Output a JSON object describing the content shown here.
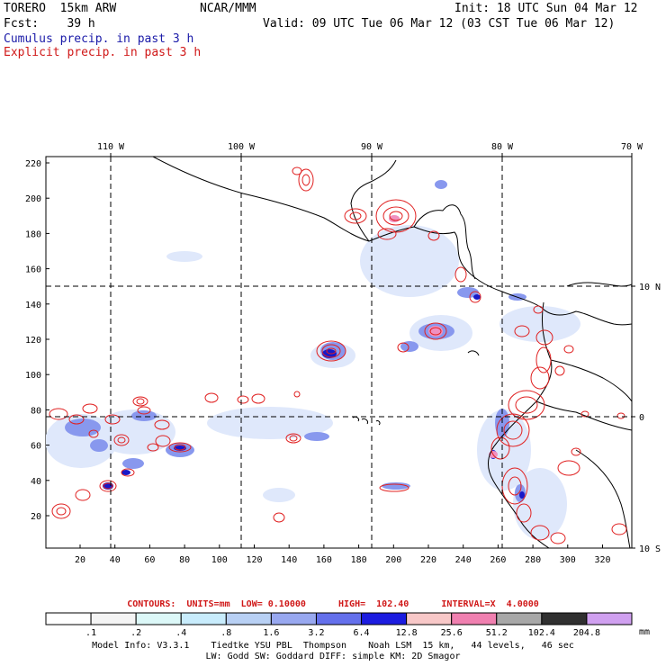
{
  "header": {
    "model": "TORERO  15km ARW",
    "org": "NCAR/MMM",
    "init": "Init: 18 UTC Sun 04 Mar 12",
    "fcst": "Fcst:    39 h",
    "valid": "Valid: 09 UTC Tue 06 Mar 12 (03 CST Tue 06 Mar 12)",
    "legend_cumulus": "Cumulus precip. in past 3 h",
    "legend_explicit": "Explicit precip. in past 3 h"
  },
  "map": {
    "lon_labels": [
      "110 W",
      "100 W",
      "90 W",
      "80 W",
      "70 W"
    ],
    "lat_labels": [
      "10 N",
      "0",
      "10 S"
    ],
    "y_ticks": [
      "220",
      "200",
      "180",
      "160",
      "140",
      "120",
      "100",
      "80",
      "60",
      "40",
      "20"
    ],
    "x_ticks": [
      "20",
      "40",
      "60",
      "80",
      "100",
      "120",
      "140",
      "160",
      "180",
      "200",
      "220",
      "240",
      "260",
      "280",
      "300",
      "320"
    ],
    "grid": "dashed",
    "colors": {
      "coast": "#000000",
      "contour": "#e02020",
      "cumulus_light": "#c8d8f8",
      "cumulus_mid": "#6878ee",
      "cumulus_dark": "#1010c8",
      "explicit_pink": "#f090c0"
    }
  },
  "contours_note": "CONTOURS:  UNITS=mm  LOW= 0.10000      HIGH=  102.40      INTERVAL=X  4.0000",
  "colorbar": {
    "labels": [
      ".1",
      ".2",
      ".4",
      ".8",
      "1.6",
      "3.2",
      "6.4",
      "12.8",
      "25.6",
      "51.2",
      "102.4",
      "204.8"
    ],
    "units": "mm",
    "colors": [
      "#ffffff",
      "#f4f4f4",
      "#dcf8f8",
      "#c8ecfc",
      "#b8d0f4",
      "#98a8f0",
      "#6470ec",
      "#1c1ce0",
      "#f8c8c8",
      "#f080b0",
      "#a8a8a8",
      "#303030",
      "#d0a0f0"
    ]
  },
  "footer": {
    "line1": "Model Info: V3.3.1    Tiedtke YSU PBL  Thompson    Noah LSM  15 km,   44 levels,   46 sec",
    "line2": "LW: Godd SW: Goddard DIFF: simple KM: 2D Smagor"
  }
}
